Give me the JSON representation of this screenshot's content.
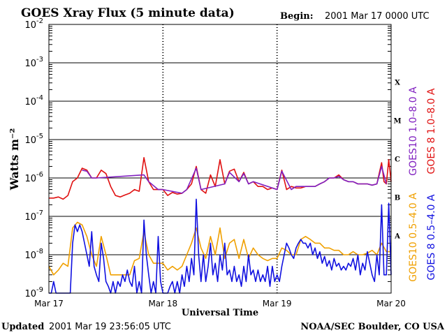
{
  "chart_data": {
    "type": "line",
    "title": "GOES Xray Flux (5 minute data)",
    "begin_label": "Begin:",
    "begin_value": "2001 Mar 17 0000 UTC",
    "xlabel": "Universal Time",
    "ylabel": "Watts m⁻²",
    "x_ticks": [
      "Mar 17",
      "Mar 18",
      "Mar 19",
      "Mar 20"
    ],
    "xlim": [
      0,
      72
    ],
    "x_unit": "hours since 2001 Mar 17 0000 UTC",
    "ylim": [
      1e-09,
      0.01
    ],
    "yscale": "log",
    "y_ticks": [
      {
        "base": "10",
        "exp": "-2",
        "value": 0.01
      },
      {
        "base": "10",
        "exp": "-3",
        "value": 0.001
      },
      {
        "base": "10",
        "exp": "-4",
        "value": 0.0001
      },
      {
        "base": "10",
        "exp": "-5",
        "value": 1e-05
      },
      {
        "base": "10",
        "exp": "-6",
        "value": 1e-06
      },
      {
        "base": "10",
        "exp": "-7",
        "value": 1e-07
      },
      {
        "base": "10",
        "exp": "-8",
        "value": 1e-08
      },
      {
        "base": "10",
        "exp": "-9",
        "value": 1e-09
      }
    ],
    "flare_classes": [
      {
        "label": "X",
        "lo": 0.0001,
        "hi": 0.001
      },
      {
        "label": "M",
        "lo": 1e-05,
        "hi": 0.0001
      },
      {
        "label": "C",
        "lo": 1e-06,
        "hi": 1e-05
      },
      {
        "label": "B",
        "lo": 1e-07,
        "hi": 1e-06
      },
      {
        "label": "A",
        "lo": 1e-08,
        "hi": 1e-07
      }
    ],
    "series": [
      {
        "name": "GOES 8 1.0–8.0 A",
        "color": "#e01010",
        "x": [
          0,
          1,
          2,
          3,
          4,
          5,
          6,
          7,
          8,
          9,
          10,
          11,
          12,
          13,
          14,
          15,
          16,
          17,
          18,
          19,
          20,
          21,
          22,
          23,
          24,
          25,
          26,
          27,
          28,
          29,
          30,
          31,
          32,
          33,
          34,
          35,
          36,
          37,
          38,
          39,
          40,
          41,
          42,
          43,
          44,
          45,
          46,
          47,
          48,
          49,
          50,
          51,
          52,
          53,
          54,
          55,
          56,
          57,
          58,
          59,
          60,
          61,
          62,
          63,
          64,
          65,
          66,
          67,
          68,
          69,
          70,
          70.5,
          71,
          71.5,
          72
        ],
        "values": [
          3e-07,
          3e-07,
          3.2e-07,
          2.8e-07,
          3.5e-07,
          8e-07,
          1e-06,
          1.8e-06,
          1.6e-06,
          1e-06,
          1e-06,
          1.6e-06,
          1.3e-06,
          6e-07,
          3.5e-07,
          3.2e-07,
          3.6e-07,
          4e-07,
          5e-07,
          4.5e-07,
          3.4e-06,
          8e-07,
          5e-07,
          5e-07,
          5e-07,
          3.5e-07,
          4.2e-07,
          3.8e-07,
          4e-07,
          5e-07,
          7e-07,
          2e-06,
          5e-07,
          4e-07,
          1.2e-06,
          6e-07,
          3e-06,
          7e-07,
          1.5e-06,
          1.7e-06,
          8e-07,
          1.4e-06,
          7e-07,
          8e-07,
          6e-07,
          6e-07,
          5e-07,
          5.5e-07,
          5e-07,
          1.6e-06,
          5e-07,
          6e-07,
          5.5e-07,
          5.5e-07,
          6e-07,
          6e-07,
          6e-07,
          7e-07,
          8e-07,
          1e-06,
          1e-06,
          1.2e-06,
          9e-07,
          8e-07,
          8e-07,
          7e-07,
          7e-07,
          7e-07,
          6.5e-07,
          7e-07,
          2.5e-06,
          8e-07,
          7e-07,
          3e-06,
          8e-07
        ]
      },
      {
        "name": "GOES10 1.0–8.0 A",
        "color": "#8020c0",
        "x": [
          7,
          8,
          9,
          10,
          20,
          21,
          23,
          24,
          28,
          29,
          31,
          32,
          37,
          38,
          40,
          41,
          42,
          43,
          48,
          49,
          51,
          52,
          56,
          57,
          58,
          59,
          60,
          61,
          62,
          63,
          64,
          65,
          66,
          67,
          68,
          69,
          70,
          71
        ],
        "values": [
          1.6e-06,
          1.5e-06,
          1e-06,
          1e-06,
          1.2e-06,
          8e-07,
          5e-07,
          5e-07,
          4e-07,
          5e-07,
          1.8e-06,
          5e-07,
          7e-07,
          1.4e-06,
          8e-07,
          1.3e-06,
          7e-07,
          8e-07,
          5e-07,
          1.5e-06,
          5e-07,
          6e-07,
          6e-07,
          7e-07,
          8e-07,
          1e-06,
          1e-06,
          1.1e-06,
          9e-07,
          8e-07,
          8e-07,
          7e-07,
          7e-07,
          7e-07,
          6.5e-07,
          7e-07,
          2e-06,
          7e-07
        ]
      },
      {
        "name": "GOES10 0.5–4.0 A",
        "color": "#f0a000",
        "x": [
          0,
          1,
          2,
          3,
          4,
          5,
          6,
          7,
          8,
          9,
          10,
          11,
          12,
          13,
          14,
          15,
          16,
          17,
          18,
          19,
          20,
          21,
          22,
          23,
          24,
          25,
          26,
          27,
          28,
          29,
          30,
          31,
          32,
          33,
          34,
          35,
          36,
          37,
          38,
          39,
          40,
          41,
          42,
          43,
          44,
          45,
          46,
          47,
          48,
          49,
          50,
          51,
          52,
          53,
          54,
          55,
          56,
          57,
          58,
          59,
          60,
          61,
          62,
          63,
          64,
          65,
          66,
          67,
          68,
          69,
          70,
          71,
          72
        ],
        "values": [
          5e-09,
          3e-09,
          4e-09,
          6e-09,
          5e-09,
          5e-08,
          7e-08,
          6e-08,
          3e-08,
          1e-08,
          5e-09,
          3e-08,
          1e-08,
          3e-09,
          3e-09,
          3e-09,
          3e-09,
          3e-09,
          7e-09,
          8e-09,
          4e-08,
          1e-08,
          6e-09,
          6e-09,
          6e-09,
          4e-09,
          5e-09,
          4e-09,
          5e-09,
          1e-08,
          2e-08,
          5e-08,
          1.5e-08,
          8e-09,
          3e-08,
          1e-08,
          5e-08,
          8e-09,
          2e-08,
          2.5e-08,
          8e-09,
          2.5e-08,
          8e-09,
          1.5e-08,
          1e-08,
          8e-09,
          7e-09,
          8e-09,
          8e-09,
          1.5e-08,
          1.3e-08,
          1e-08,
          1e-08,
          2.5e-08,
          3e-08,
          2.5e-08,
          2e-08,
          2e-08,
          1.5e-08,
          1.5e-08,
          1.3e-08,
          1.3e-08,
          1e-08,
          1e-08,
          1.2e-08,
          1e-08,
          1e-08,
          1.1e-08,
          1.3e-08,
          1e-08,
          2e-08,
          1.2e-08,
          1.2e-08
        ]
      },
      {
        "name": "GOES 8 0.5–4.0 A",
        "color": "#1010e0",
        "x": [
          0,
          0.5,
          1,
          1.5,
          2,
          2.5,
          3,
          3.5,
          4,
          4.5,
          5,
          5.5,
          6,
          6.5,
          7,
          7.5,
          8,
          8.5,
          9,
          9.5,
          10,
          10.5,
          11,
          11.5,
          12,
          12.5,
          13,
          13.5,
          14,
          14.5,
          15,
          15.5,
          16,
          16.5,
          17,
          17.5,
          18,
          18.5,
          19,
          19.5,
          20,
          20.5,
          21,
          21.5,
          22,
          22.5,
          23,
          23.5,
          24,
          24.5,
          25,
          25.5,
          26,
          26.5,
          27,
          27.5,
          28,
          28.5,
          29,
          29.5,
          30,
          30.5,
          31,
          31.5,
          32,
          32.5,
          33,
          33.5,
          34,
          34.5,
          35,
          35.5,
          36,
          36.5,
          37,
          37.5,
          38,
          38.5,
          39,
          39.5,
          40,
          40.5,
          41,
          41.5,
          42,
          42.5,
          43,
          43.5,
          44,
          44.5,
          45,
          45.5,
          46,
          46.5,
          47,
          47.5,
          48,
          48.5,
          49,
          49.5,
          50,
          50.5,
          51,
          51.5,
          52,
          52.5,
          53,
          53.5,
          54,
          54.5,
          55,
          55.5,
          56,
          56.5,
          57,
          57.5,
          58,
          58.5,
          59,
          59.5,
          60,
          60.5,
          61,
          61.5,
          62,
          62.5,
          63,
          63.5,
          64,
          64.5,
          65,
          65.5,
          66,
          66.5,
          67,
          67.5,
          68,
          68.5,
          69,
          69.5,
          70,
          70.5,
          71,
          71.5,
          72
        ],
        "values": [
          1e-09,
          1e-09,
          2e-09,
          1e-09,
          1e-09,
          1e-09,
          1e-09,
          1e-09,
          1e-09,
          1e-09,
          2e-08,
          6e-08,
          4e-08,
          6e-08,
          4e-08,
          2e-08,
          1e-08,
          5e-09,
          4e-08,
          5e-09,
          3e-09,
          2e-09,
          2e-08,
          8e-09,
          2e-09,
          1.5e-09,
          1e-09,
          2e-09,
          1e-09,
          2e-09,
          1.5e-09,
          3e-09,
          2e-09,
          4e-09,
          2e-09,
          1.5e-09,
          5e-09,
          1e-09,
          2e-09,
          1e-09,
          8e-08,
          1e-08,
          3e-09,
          1e-09,
          2e-09,
          1e-09,
          3e-08,
          2e-09,
          1e-09,
          1e-09,
          1e-09,
          1.5e-09,
          2e-09,
          1e-09,
          2e-09,
          1e-09,
          3e-09,
          1.5e-09,
          5e-09,
          2e-09,
          8e-09,
          3e-09,
          2.8e-07,
          1e-08,
          2e-09,
          1e-08,
          2e-09,
          5e-09,
          2e-08,
          3e-09,
          6e-09,
          2e-09,
          1e-08,
          4e-09,
          2e-08,
          3e-09,
          4e-09,
          2e-09,
          5e-09,
          2e-09,
          3e-09,
          1.5e-09,
          5e-09,
          2e-09,
          1e-08,
          3e-09,
          4e-09,
          2e-09,
          4e-09,
          2e-09,
          3e-09,
          2e-09,
          5e-09,
          1.5e-09,
          5e-09,
          2e-09,
          3e-09,
          2e-09,
          5e-09,
          1e-08,
          2e-08,
          1.5e-08,
          1e-08,
          8e-09,
          1.5e-08,
          2e-08,
          2.5e-08,
          2e-08,
          2e-08,
          1.5e-08,
          2e-08,
          1e-08,
          1.5e-08,
          8e-09,
          1.2e-08,
          6e-09,
          9e-09,
          5e-09,
          7e-09,
          4e-09,
          8e-09,
          5e-09,
          6e-09,
          4e-09,
          5e-09,
          4e-09,
          6e-09,
          5e-09,
          8e-09,
          4e-09,
          1e-08,
          3e-09,
          6e-09,
          4e-09,
          1.2e-08,
          6e-09,
          3e-09,
          2e-09,
          1e-08,
          3e-09,
          2e-07,
          3e-09,
          3e-09,
          2.2e-07,
          3e-09
        ]
      }
    ]
  },
  "legend_right": [
    {
      "text": "GOES10 1.0–8.0 A",
      "color": "#8020c0"
    },
    {
      "text": "GOES 8 1.0–8.0 A",
      "color": "#e01010"
    },
    {
      "text": "GOES10 0.5–4.0 A",
      "color": "#f0a000"
    },
    {
      "text": "GOES 8 0.5–4.0 A",
      "color": "#1010e0"
    }
  ],
  "footer": {
    "updated_label": "Updated",
    "updated_value": "2001 Mar 19 23:56:05 UTC",
    "source": "NOAA/SEC Boulder, CO USA"
  }
}
